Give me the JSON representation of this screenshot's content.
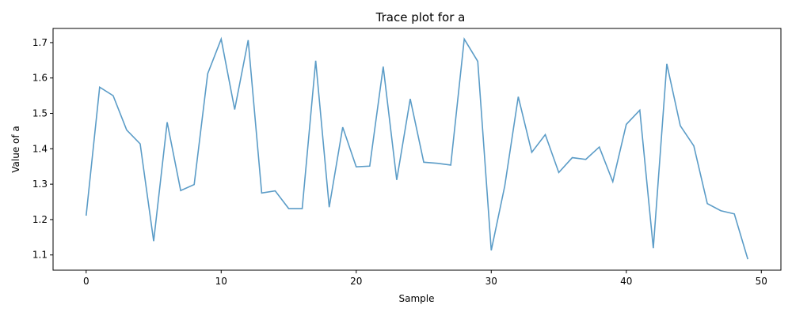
{
  "chart_data": {
    "type": "line",
    "title": "Trace plot for a",
    "xlabel": "Sample",
    "ylabel": "Value of a",
    "xlim": [
      -2.45,
      51.45
    ],
    "ylim": [
      1.057,
      1.74
    ],
    "xticks": [
      0,
      10,
      20,
      30,
      40,
      50
    ],
    "yticks": [
      1.1,
      1.2,
      1.3,
      1.4,
      1.5,
      1.6,
      1.7
    ],
    "xtick_labels": [
      "0",
      "10",
      "20",
      "30",
      "40",
      "50"
    ],
    "ytick_labels": [
      "1.1",
      "1.2",
      "1.3",
      "1.4",
      "1.5",
      "1.6",
      "1.7"
    ],
    "grid": false,
    "line_color": "#5b9cc7",
    "series": [
      {
        "x": [
          0,
          1,
          2,
          3,
          4,
          5,
          6,
          7,
          8,
          9,
          10,
          11,
          12,
          13,
          14,
          15,
          16,
          17,
          18,
          19,
          20,
          21,
          22,
          23,
          24,
          25,
          26,
          27,
          28,
          29,
          30,
          31,
          32,
          33,
          34,
          35,
          36,
          37,
          38,
          39,
          40,
          41,
          42,
          43,
          44,
          45,
          46,
          47,
          48,
          49
        ],
        "values": [
          1.211,
          1.574,
          1.55,
          1.453,
          1.414,
          1.139,
          1.475,
          1.282,
          1.299,
          1.612,
          1.71,
          1.511,
          1.707,
          1.275,
          1.281,
          1.231,
          1.231,
          1.649,
          1.235,
          1.461,
          1.349,
          1.351,
          1.632,
          1.312,
          1.541,
          1.362,
          1.359,
          1.354,
          1.71,
          1.647,
          1.113,
          1.295,
          1.547,
          1.39,
          1.44,
          1.333,
          1.375,
          1.37,
          1.405,
          1.307,
          1.469,
          1.509,
          1.119,
          1.64,
          1.465,
          1.408,
          1.245,
          1.225,
          1.216,
          1.088
        ]
      }
    ]
  }
}
